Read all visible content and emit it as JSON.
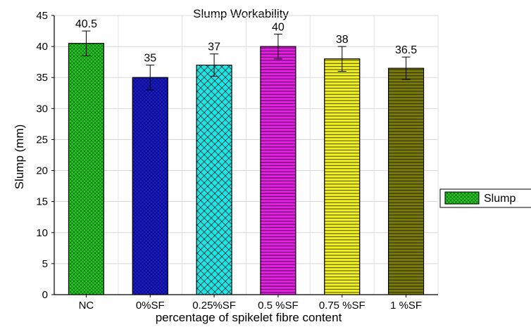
{
  "chart_data": {
    "type": "bar",
    "title": "Slump Workability",
    "xlabel": "percentage of spikelet fibre content",
    "ylabel": "Slump (mm)",
    "ylim": [
      0,
      45
    ],
    "yticks": [
      0,
      5,
      10,
      15,
      20,
      25,
      30,
      35,
      40,
      45
    ],
    "grid": true,
    "legend_position": "right",
    "categories": [
      "NC",
      "0%SF",
      "0.25%SF",
      "0.5 %SF",
      "0.75 %SF",
      "1 %SF"
    ],
    "series": [
      {
        "name": "Slump",
        "values": [
          40.5,
          35,
          37,
          40,
          38,
          36.5
        ],
        "labels": [
          "40.5",
          "35",
          "37",
          "40",
          "38",
          "36.5"
        ],
        "error": [
          2,
          2,
          1.8,
          2,
          2,
          1.8
        ]
      }
    ],
    "bar_colors": [
      "#22cc22",
      "#1a1ad0",
      "#1ee6e6",
      "#e61ee6",
      "#f2f222",
      "#7a7a0a"
    ],
    "bar_patterns": [
      "grid-diagonal",
      "grid-diagonal",
      "crosshatch",
      "horizontal",
      "horizontal",
      "horizontal"
    ]
  }
}
